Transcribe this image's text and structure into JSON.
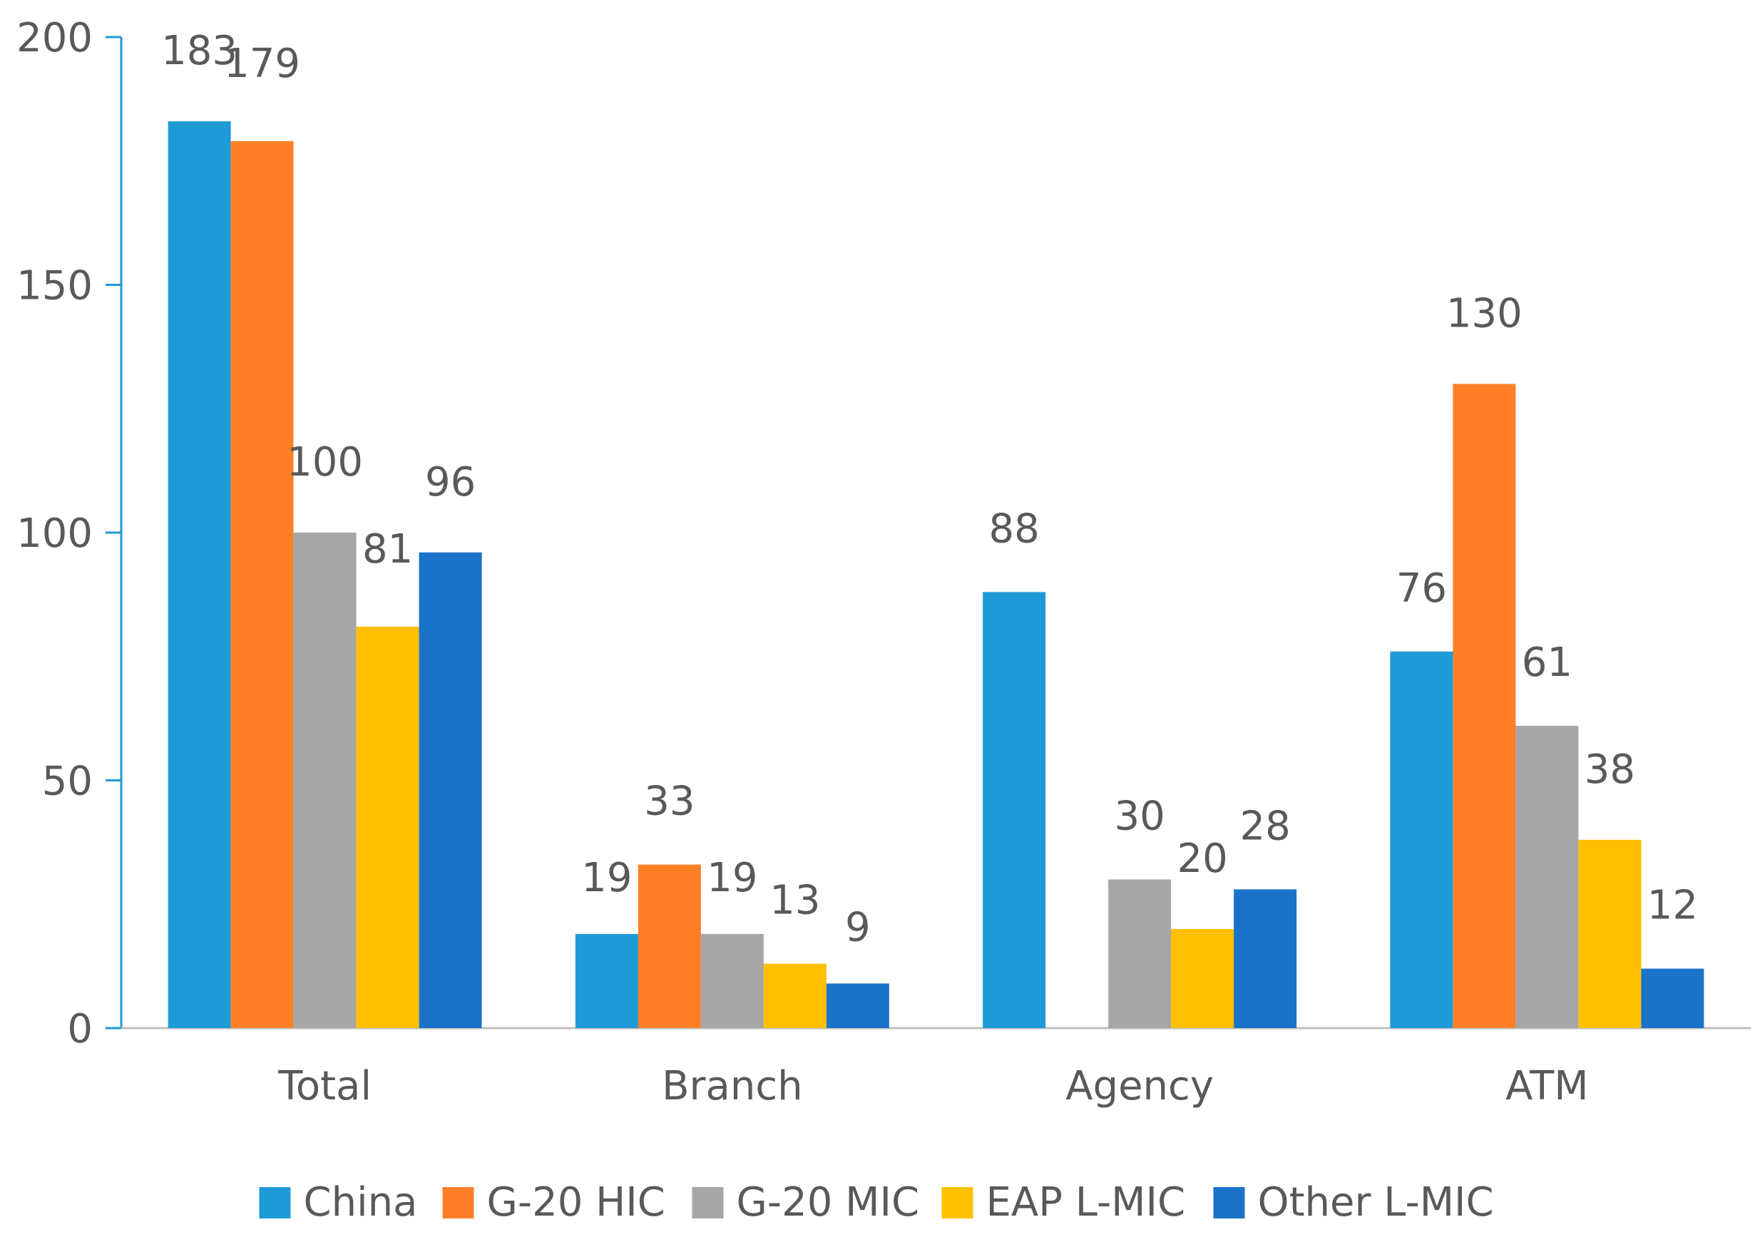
{
  "chart_data": {
    "type": "bar",
    "title": "",
    "xlabel": "",
    "ylabel": "",
    "categories": [
      "Total",
      "Branch",
      "Agency",
      "ATM"
    ],
    "ylim": [
      0,
      200
    ],
    "yticks": [
      0,
      50,
      100,
      150,
      200
    ],
    "grid": false,
    "legend_position": "bottom",
    "series": [
      {
        "name": "China",
        "color": "#1E9BD7",
        "values": [
          183,
          19,
          88,
          76
        ]
      },
      {
        "name": "G-20 HIC",
        "color": "#FF7F27",
        "values": [
          179,
          33,
          null,
          130
        ]
      },
      {
        "name": "G-20 MIC",
        "color": "#A6A6A6",
        "values": [
          100,
          19,
          30,
          61
        ]
      },
      {
        "name": "EAP L-MIC",
        "color": "#FFC000",
        "values": [
          81,
          13,
          20,
          38
        ]
      },
      {
        "name": "Other L-MIC",
        "color": "#1A73C8",
        "values": [
          96,
          9,
          28,
          12
        ]
      }
    ]
  }
}
